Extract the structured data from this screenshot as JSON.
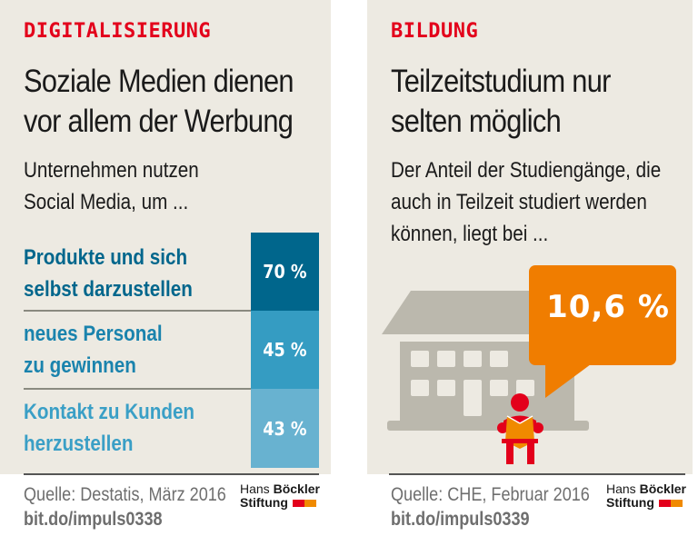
{
  "left": {
    "category": "DIGITALISIERUNG",
    "title_lines": [
      "Soziale Medien dienen",
      "vor allem der Werbung"
    ],
    "subtitle_lines": [
      "Unternehmen nutzen",
      "Social Media, um ..."
    ],
    "rows": [
      {
        "label_lines": [
          "Produkte und sich",
          "selbst darzustellen"
        ],
        "value": "70 %",
        "percent": 70,
        "color": "#00668c"
      },
      {
        "label_lines": [
          "neues Personal",
          "zu gewinnen"
        ],
        "value": "45 %",
        "percent": 45,
        "color": "#359cc2"
      },
      {
        "label_lines": [
          "Kontakt zu Kunden",
          "herzustellen"
        ],
        "value": "43 %",
        "percent": 43,
        "color": "#68b2d0"
      }
    ],
    "source": "Quelle: Destatis, März 2016",
    "link": "bit.do/impuls0338",
    "logo": {
      "line1_light": "Hans",
      "line1_bold": "Böckler",
      "line2": "Stiftung"
    }
  },
  "right": {
    "category": "BILDUNG",
    "title_lines": [
      "Teilzeitstudium nur",
      "selten möglich"
    ],
    "subtitle_lines": [
      "Der Anteil der Studiengänge, die",
      "auch in Teilzeit studiert werden",
      "können, liegt bei ..."
    ],
    "highlight_value": "10,6 %",
    "highlight_percent": 10.6,
    "source": "Quelle: CHE, Februar 2016",
    "link": "bit.do/impuls0339",
    "logo": {
      "line1_light": "Hans",
      "line1_bold": "Böckler",
      "line2": "Stiftung"
    }
  },
  "colors": {
    "accent_red": "#e3001b",
    "accent_orange": "#f08a00",
    "panel_bg": "#edeae2",
    "building_gray": "#bbb8ad"
  },
  "icons": [
    "school-building-icon",
    "reading-student-icon",
    "speech-bubble-icon"
  ]
}
